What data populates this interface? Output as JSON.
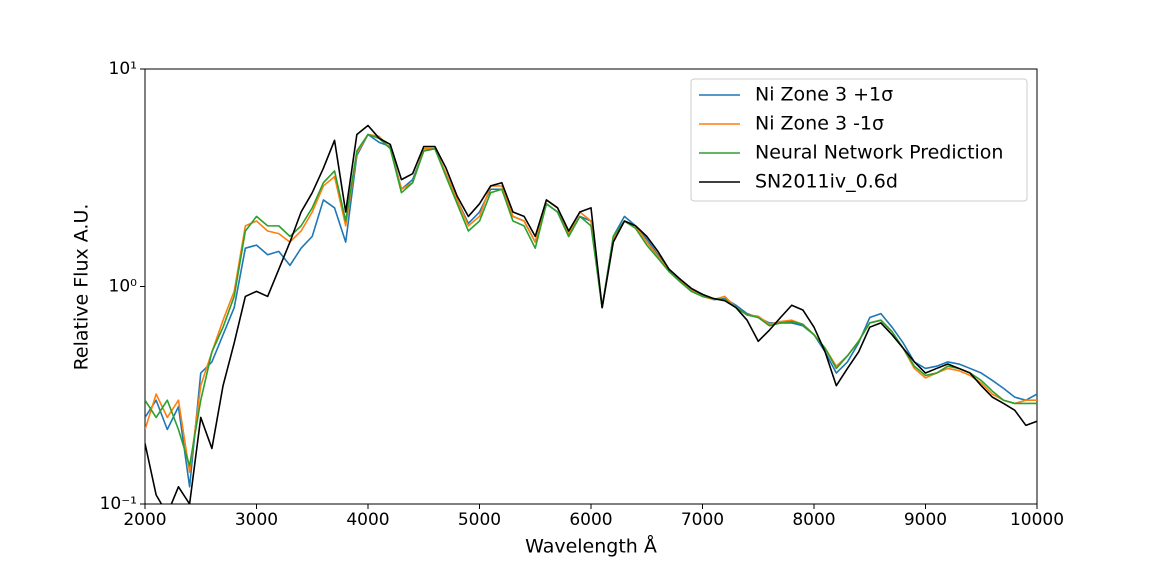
{
  "chart_data": {
    "type": "line",
    "xlabel": "Wavelength Å",
    "ylabel": "Relative Flux A.U.",
    "yscale": "log",
    "legend": "upper right",
    "xlim": [
      2000,
      10000
    ],
    "xticks": [
      2000,
      3000,
      4000,
      5000,
      6000,
      7000,
      8000,
      9000,
      10000
    ],
    "ylim": [
      0.1,
      10
    ],
    "yticks": [
      {
        "value": 0.1,
        "label": "10⁻¹"
      },
      {
        "value": 1,
        "label": "10⁰"
      },
      {
        "value": 10,
        "label": "10¹"
      }
    ],
    "x": [
      2000,
      2100,
      2200,
      2300,
      2400,
      2500,
      2600,
      2700,
      2800,
      2900,
      3000,
      3100,
      3200,
      3300,
      3400,
      3500,
      3600,
      3700,
      3800,
      3900,
      4000,
      4100,
      4200,
      4300,
      4400,
      4500,
      4600,
      4700,
      4800,
      4900,
      5000,
      5100,
      5200,
      5300,
      5400,
      5500,
      5600,
      5700,
      5800,
      5900,
      6000,
      6100,
      6200,
      6300,
      6400,
      6500,
      6600,
      6700,
      6800,
      6900,
      7000,
      7100,
      7200,
      7300,
      7400,
      7500,
      7600,
      7700,
      7800,
      7900,
      8000,
      8100,
      8200,
      8300,
      8400,
      8500,
      8600,
      8700,
      8800,
      8900,
      9000,
      9100,
      9200,
      9300,
      9400,
      9500,
      9600,
      9700,
      9800,
      9900,
      10000
    ],
    "series": [
      {
        "name": "Ni Zone 3 +1σ",
        "color": "#1f77b4",
        "values": [
          0.25,
          0.3,
          0.22,
          0.28,
          0.12,
          0.4,
          0.45,
          0.6,
          0.8,
          1.5,
          1.55,
          1.4,
          1.45,
          1.25,
          1.5,
          1.7,
          2.5,
          2.3,
          1.6,
          4.0,
          5.0,
          4.6,
          4.4,
          2.8,
          3.1,
          4.2,
          4.3,
          3.3,
          2.5,
          1.95,
          2.2,
          2.8,
          2.8,
          2.1,
          2.0,
          1.6,
          2.4,
          2.2,
          1.7,
          2.1,
          2.0,
          0.8,
          1.7,
          2.1,
          1.9,
          1.65,
          1.4,
          1.2,
          1.08,
          0.97,
          0.92,
          0.87,
          0.88,
          0.82,
          0.75,
          0.72,
          0.68,
          0.68,
          0.68,
          0.66,
          0.6,
          0.5,
          0.4,
          0.45,
          0.55,
          0.72,
          0.75,
          0.65,
          0.55,
          0.45,
          0.42,
          0.43,
          0.45,
          0.44,
          0.42,
          0.4,
          0.37,
          0.34,
          0.31,
          0.3,
          0.32
        ]
      },
      {
        "name": "Ni Zone 3 -1σ",
        "color": "#ff7f0e",
        "values": [
          0.22,
          0.32,
          0.25,
          0.3,
          0.14,
          0.35,
          0.5,
          0.7,
          0.95,
          1.9,
          2.0,
          1.8,
          1.75,
          1.6,
          1.8,
          2.2,
          2.9,
          3.2,
          1.9,
          4.1,
          5.0,
          4.9,
          4.3,
          2.8,
          3.0,
          4.3,
          4.3,
          3.3,
          2.5,
          1.9,
          2.1,
          2.9,
          2.9,
          2.1,
          2.0,
          1.6,
          2.5,
          2.3,
          1.75,
          2.2,
          2.0,
          0.8,
          1.65,
          2.0,
          1.9,
          1.6,
          1.38,
          1.18,
          1.06,
          0.96,
          0.9,
          0.87,
          0.9,
          0.8,
          0.74,
          0.73,
          0.67,
          0.69,
          0.7,
          0.67,
          0.6,
          0.52,
          0.43,
          0.48,
          0.56,
          0.68,
          0.7,
          0.62,
          0.52,
          0.42,
          0.38,
          0.4,
          0.42,
          0.41,
          0.39,
          0.36,
          0.32,
          0.3,
          0.29,
          0.3,
          0.3
        ]
      },
      {
        "name": "Neural Network Prediction",
        "color": "#2ca02c",
        "values": [
          0.3,
          0.25,
          0.3,
          0.22,
          0.15,
          0.3,
          0.5,
          0.65,
          0.9,
          1.8,
          2.1,
          1.9,
          1.9,
          1.7,
          1.9,
          2.3,
          3.0,
          3.4,
          2.0,
          4.2,
          5.0,
          4.8,
          4.3,
          2.7,
          3.0,
          4.2,
          4.3,
          3.2,
          2.4,
          1.8,
          2.0,
          2.7,
          2.8,
          2.0,
          1.9,
          1.5,
          2.4,
          2.2,
          1.7,
          2.1,
          1.9,
          0.8,
          1.7,
          2.0,
          1.85,
          1.55,
          1.35,
          1.17,
          1.05,
          0.95,
          0.9,
          0.88,
          0.87,
          0.8,
          0.74,
          0.72,
          0.66,
          0.68,
          0.69,
          0.67,
          0.6,
          0.52,
          0.42,
          0.48,
          0.56,
          0.68,
          0.7,
          0.62,
          0.52,
          0.43,
          0.39,
          0.4,
          0.43,
          0.42,
          0.4,
          0.37,
          0.33,
          0.3,
          0.29,
          0.29,
          0.29
        ]
      },
      {
        "name": "SN2011iv_0.6d",
        "color": "#000000",
        "values": [
          0.19,
          0.11,
          0.09,
          0.12,
          0.1,
          0.25,
          0.18,
          0.35,
          0.55,
          0.9,
          0.95,
          0.9,
          1.2,
          1.6,
          2.2,
          2.7,
          3.5,
          4.7,
          2.2,
          5.0,
          5.5,
          4.8,
          4.5,
          3.1,
          3.3,
          4.4,
          4.4,
          3.5,
          2.6,
          2.1,
          2.4,
          2.9,
          3.0,
          2.2,
          2.1,
          1.7,
          2.5,
          2.3,
          1.8,
          2.2,
          2.3,
          0.8,
          1.6,
          2.0,
          1.9,
          1.7,
          1.45,
          1.2,
          1.08,
          0.98,
          0.92,
          0.88,
          0.86,
          0.8,
          0.7,
          0.56,
          0.63,
          0.72,
          0.82,
          0.78,
          0.65,
          0.5,
          0.35,
          0.42,
          0.5,
          0.65,
          0.68,
          0.6,
          0.52,
          0.45,
          0.4,
          0.42,
          0.44,
          0.42,
          0.4,
          0.35,
          0.31,
          0.29,
          0.27,
          0.23,
          0.24
        ]
      }
    ]
  }
}
